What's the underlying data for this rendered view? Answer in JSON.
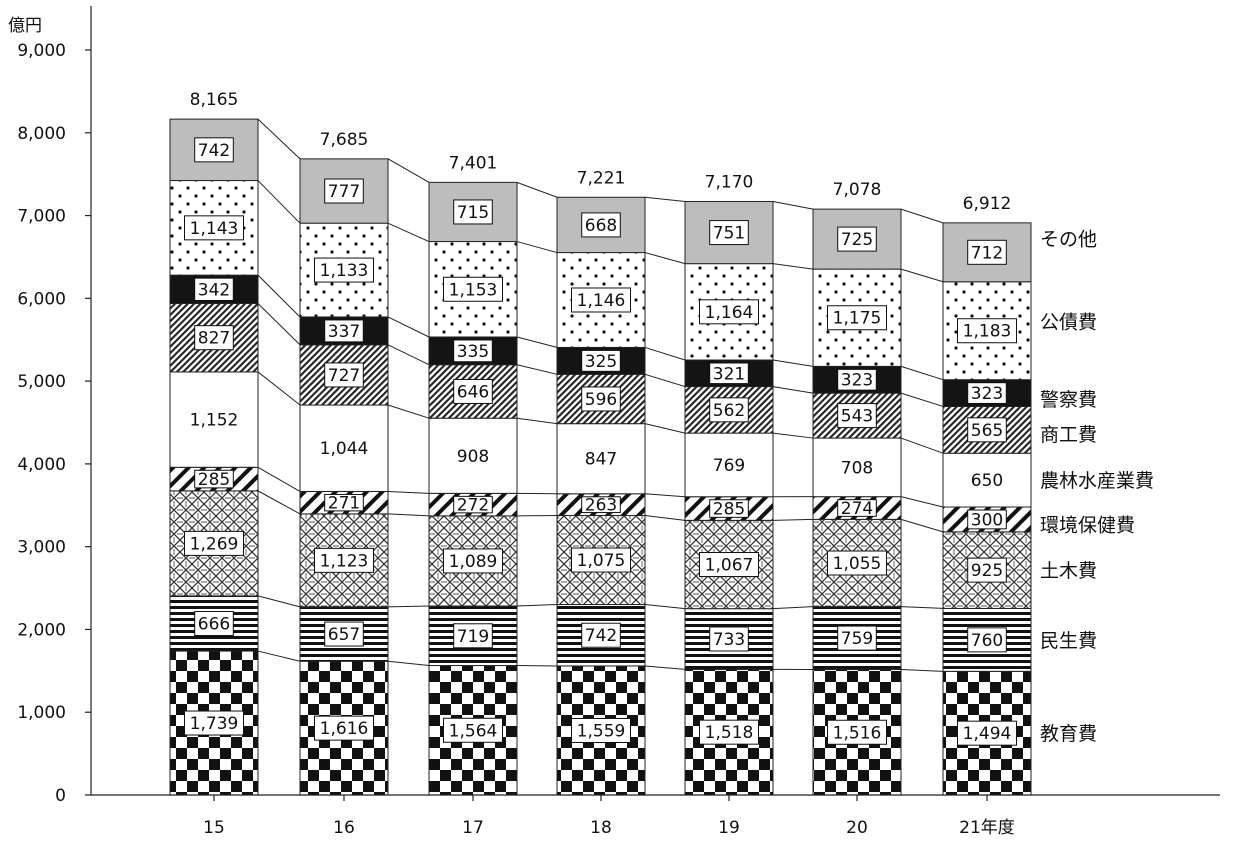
{
  "chart_data": {
    "type": "bar",
    "stacked": true,
    "y_unit": "億円",
    "ylim": [
      0,
      9000
    ],
    "y_ticks": [
      "0",
      "1,000",
      "2,000",
      "3,000",
      "4,000",
      "5,000",
      "6,000",
      "7,000",
      "8,000",
      "9,000"
    ],
    "categories": [
      "15",
      "16",
      "17",
      "18",
      "19",
      "20",
      "21年度"
    ],
    "totals": [
      8165,
      7685,
      7401,
      7221,
      7170,
      7078,
      6912
    ],
    "total_labels": [
      "8,165",
      "7,685",
      "7,401",
      "7,221",
      "7,170",
      "7,078",
      "6,912"
    ],
    "grid": false,
    "legend_placement": "right, beside last bar",
    "series": [
      {
        "name": "教育費",
        "pattern": "checker",
        "values": [
          1739,
          1616,
          1564,
          1559,
          1518,
          1516,
          1494
        ]
      },
      {
        "name": "民生費",
        "pattern": "horizontal-lines",
        "values": [
          666,
          657,
          719,
          742,
          733,
          759,
          760
        ]
      },
      {
        "name": "土木費",
        "pattern": "lattice",
        "values": [
          1269,
          1123,
          1089,
          1075,
          1067,
          1055,
          925
        ]
      },
      {
        "name": "環境保健費",
        "pattern": "wide-diagonal",
        "values": [
          285,
          271,
          272,
          263,
          285,
          274,
          300
        ]
      },
      {
        "name": "農林水産業費",
        "pattern": "white",
        "values": [
          1152,
          1044,
          908,
          847,
          769,
          708,
          650
        ]
      },
      {
        "name": "商工費",
        "pattern": "dense-diagonal",
        "values": [
          827,
          727,
          646,
          596,
          562,
          543,
          565
        ]
      },
      {
        "name": "警察費",
        "pattern": "black",
        "values": [
          342,
          337,
          335,
          325,
          321,
          323,
          323
        ]
      },
      {
        "name": "公債費",
        "pattern": "dots",
        "values": [
          1143,
          1133,
          1153,
          1146,
          1164,
          1175,
          1183
        ]
      },
      {
        "name": "その他",
        "pattern": "gray",
        "values": [
          742,
          777,
          715,
          668,
          751,
          725,
          712
        ]
      }
    ]
  }
}
